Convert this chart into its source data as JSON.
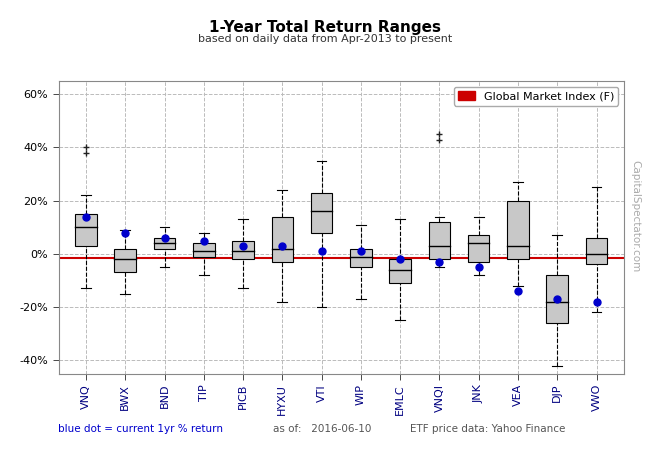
{
  "title": "1-Year Total Return Ranges",
  "subtitle": "based on daily data from Apr-2013 to present",
  "categories": [
    "VNQ",
    "BWX",
    "BND",
    "TIP",
    "PICB",
    "HYXU",
    "VTI",
    "WIP",
    "EMLC",
    "VNQI",
    "JNK",
    "VEA",
    "DJP",
    "VWO"
  ],
  "box_data": [
    {
      "whislo": -13,
      "q1": 3,
      "med": 10,
      "q3": 15,
      "whishi": 22,
      "fliers_high": [
        38,
        40
      ],
      "fliers_low": [],
      "dot": 14
    },
    {
      "whislo": -15,
      "q1": -7,
      "med": -2,
      "q3": 2,
      "whishi": 9,
      "fliers_high": [],
      "fliers_low": [],
      "dot": 8
    },
    {
      "whislo": -5,
      "q1": 2,
      "med": 4,
      "q3": 6,
      "whishi": 10,
      "fliers_high": [],
      "fliers_low": [],
      "dot": 6
    },
    {
      "whislo": -8,
      "q1": -1,
      "med": 1,
      "q3": 4,
      "whishi": 8,
      "fliers_high": [],
      "fliers_low": [],
      "dot": 5
    },
    {
      "whislo": -13,
      "q1": -2,
      "med": 1,
      "q3": 5,
      "whishi": 13,
      "fliers_high": [],
      "fliers_low": [],
      "dot": 3
    },
    {
      "whislo": -18,
      "q1": -3,
      "med": 2,
      "q3": 14,
      "whishi": 24,
      "fliers_high": [],
      "fliers_low": [],
      "dot": 3
    },
    {
      "whislo": -20,
      "q1": 8,
      "med": 16,
      "q3": 23,
      "whishi": 35,
      "fliers_high": [],
      "fliers_low": [],
      "dot": 1
    },
    {
      "whislo": -17,
      "q1": -5,
      "med": -1,
      "q3": 2,
      "whishi": 11,
      "fliers_high": [],
      "fliers_low": [],
      "dot": 1
    },
    {
      "whislo": -25,
      "q1": -11,
      "med": -6,
      "q3": -2,
      "whishi": 13,
      "fliers_high": [],
      "fliers_low": [],
      "dot": -2
    },
    {
      "whislo": -5,
      "q1": -2,
      "med": 3,
      "q3": 12,
      "whishi": 14,
      "fliers_high": [
        43,
        45
      ],
      "fliers_low": [],
      "dot": -3
    },
    {
      "whislo": -8,
      "q1": -3,
      "med": 4,
      "q3": 7,
      "whishi": 14,
      "fliers_high": [],
      "fliers_low": [],
      "dot": -5
    },
    {
      "whislo": -12,
      "q1": -2,
      "med": 3,
      "q3": 20,
      "whishi": 27,
      "fliers_high": [],
      "fliers_low": [],
      "dot": -14
    },
    {
      "whislo": -42,
      "q1": -26,
      "med": -18,
      "q3": -8,
      "whishi": 7,
      "fliers_high": [],
      "fliers_low": [],
      "dot": -17
    },
    {
      "whislo": -22,
      "q1": -4,
      "med": 0,
      "q3": 6,
      "whishi": 25,
      "fliers_high": [],
      "fliers_low": [],
      "dot": -18
    }
  ],
  "ref_line": -1.5,
  "ref_color": "#cc0000",
  "box_facecolor": "#c8c8c8",
  "box_edgecolor": "#000000",
  "dot_color": "#0000cc",
  "ylim": [
    -45,
    65
  ],
  "yticks": [
    -40,
    -20,
    0,
    20,
    40,
    60
  ],
  "grid_color": "#bbbbbb",
  "background_color": "#ffffff",
  "legend_label": "Global Market Index (F)",
  "legend_color": "#cc0000",
  "footnote_left": "blue dot = current 1yr % return",
  "footnote_mid": "as of:   2016-06-10",
  "footnote_right": "ETF price data: Yahoo Finance",
  "watermark": "CapitalSpectator.com"
}
